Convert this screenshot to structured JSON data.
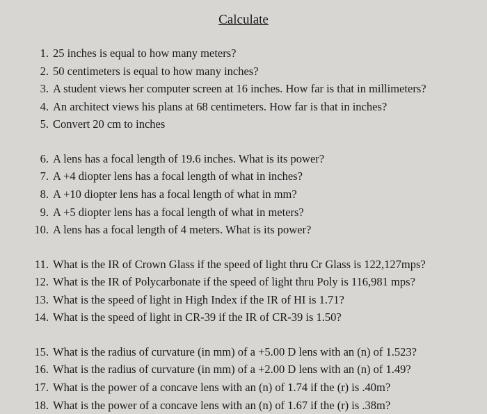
{
  "title": "Calculate",
  "groups": [
    {
      "items": [
        {
          "num": "1.",
          "text": "25 inches is equal to how many meters?"
        },
        {
          "num": "2.",
          "text": "50 centimeters is equal to how many inches?"
        },
        {
          "num": "3.",
          "text": "A student views her computer screen at 16 inches.  How far is that in millimeters?"
        },
        {
          "num": "4.",
          "text": "An architect views his plans at 68 centimeters.  How far is that in inches?"
        },
        {
          "num": "5.",
          "text": "Convert 20 cm to inches"
        }
      ]
    },
    {
      "items": [
        {
          "num": "6.",
          "text": "A lens has a focal length of 19.6 inches.  What is its power?"
        },
        {
          "num": "7.",
          "text": "A +4 diopter lens has a focal length of what in inches?"
        },
        {
          "num": "8.",
          "text": "A +10 diopter lens has a focal length of what in mm?"
        },
        {
          "num": "9.",
          "text": "A +5 diopter lens has a focal length of what in meters?"
        },
        {
          "num": "10.",
          "text": "A lens has a focal length of 4 meters.  What is its power?"
        }
      ]
    },
    {
      "items": [
        {
          "num": "11.",
          "text": "What is the IR of Crown Glass if the speed of light thru Cr Glass is 122,127mps?"
        },
        {
          "num": "12.",
          "text": "What is the IR of Polycarbonate if the speed of light thru Poly is 116,981 mps?"
        },
        {
          "num": "13.",
          "text": "What is the speed of light in High Index if the IR of HI is 1.71?"
        },
        {
          "num": "14.",
          "text": "What is the speed of light in CR-39 if the IR of CR-39 is 1.50?"
        }
      ]
    },
    {
      "items": [
        {
          "num": "15.",
          "text": "What is the radius of curvature (in mm) of a +5.00 D lens with an (n) of 1.523?"
        },
        {
          "num": "16.",
          "text": "What is the radius of curvature (in mm) of a +2.00 D lens with an (n) of 1.49?"
        },
        {
          "num": "17.",
          "text": "What is the power of a concave lens with an (n) of 1.74 if the (r) is .40m?"
        },
        {
          "num": "18.",
          "text": "What is the power of a concave lens with an (n) of 1.67 if the (r) is .38m?"
        }
      ]
    }
  ],
  "colors": {
    "background": "#d8d6d2",
    "text": "#1a1a1a"
  },
  "typography": {
    "title_fontsize": 19,
    "body_fontsize": 16.5,
    "font_family": "Times New Roman"
  }
}
